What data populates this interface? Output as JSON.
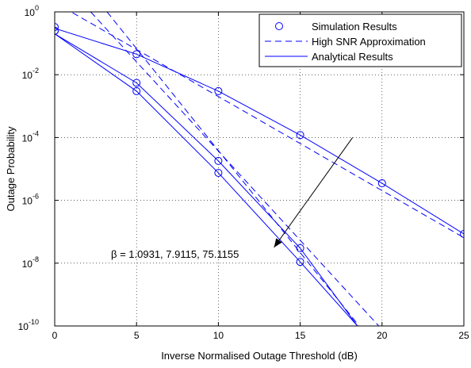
{
  "chart_data": {
    "type": "line",
    "xlabel": "Inverse Normalised Outage Threshold (dB)",
    "ylabel": "Outage Probability",
    "xlim": [
      0,
      25
    ],
    "ylim": [
      1e-10,
      1
    ],
    "y_scale": "log",
    "grid": true,
    "legend_placement": "top-right",
    "x_ticks": [
      0,
      5,
      10,
      15,
      20,
      25
    ],
    "x_tick_labels": [
      "0",
      "5",
      "10",
      "15",
      "20",
      "25"
    ],
    "y_tick_exponents": [
      0,
      -2,
      -4,
      -6,
      -8,
      -10
    ],
    "y_tick_base": "10",
    "line_color": "#0000ff",
    "legend": [
      {
        "label": "Simulation Results",
        "style": "marker"
      },
      {
        "label": "High SNR Approximation",
        "style": "dashed"
      },
      {
        "label": "Analytical Results",
        "style": "solid"
      }
    ],
    "series": [
      {
        "x": [
          0,
          5,
          10,
          15,
          20,
          25
        ],
        "simulation": [
          0.25,
          0.045,
          0.003,
          0.00012,
          3.5e-06,
          8.5e-08
        ],
        "analytical": [
          0.3,
          0.045,
          0.003,
          0.00012,
          3.5e-06,
          8.5e-08
        ],
        "approximation": {
          "x": [
            0,
            25
          ],
          "y": [
            2.0,
            6.5e-08
          ]
        }
      },
      {
        "x": [
          0,
          5,
          10,
          15,
          18.5
        ],
        "simulation": [
          0.25,
          0.0055,
          1.8e-05,
          3e-08
        ],
        "analytical": [
          0.2,
          0.0055,
          1.8e-05,
          3e-08,
          1e-10
        ],
        "approximation": {
          "x": [
            2.2,
            19.8
          ],
          "y": [
            1.0,
            1e-10
          ]
        }
      },
      {
        "x": [
          0,
          5,
          10,
          15,
          18.5
        ],
        "simulation": [
          0.33,
          0.003,
          7.5e-06,
          1.1e-08
        ],
        "analytical": [
          0.2,
          0.003,
          7.5e-06,
          1.1e-08,
          1e-10
        ],
        "approximation": {
          "x": [
            3.2,
            18.6
          ],
          "y": [
            1.0,
            1e-10
          ]
        }
      }
    ],
    "annotation": {
      "text": "β = 1.0931, 7.9115, 75.1155",
      "arrow_from": [
        18.2,
        -4.0
      ],
      "arrow_to": [
        13.4,
        -7.5
      ]
    }
  }
}
